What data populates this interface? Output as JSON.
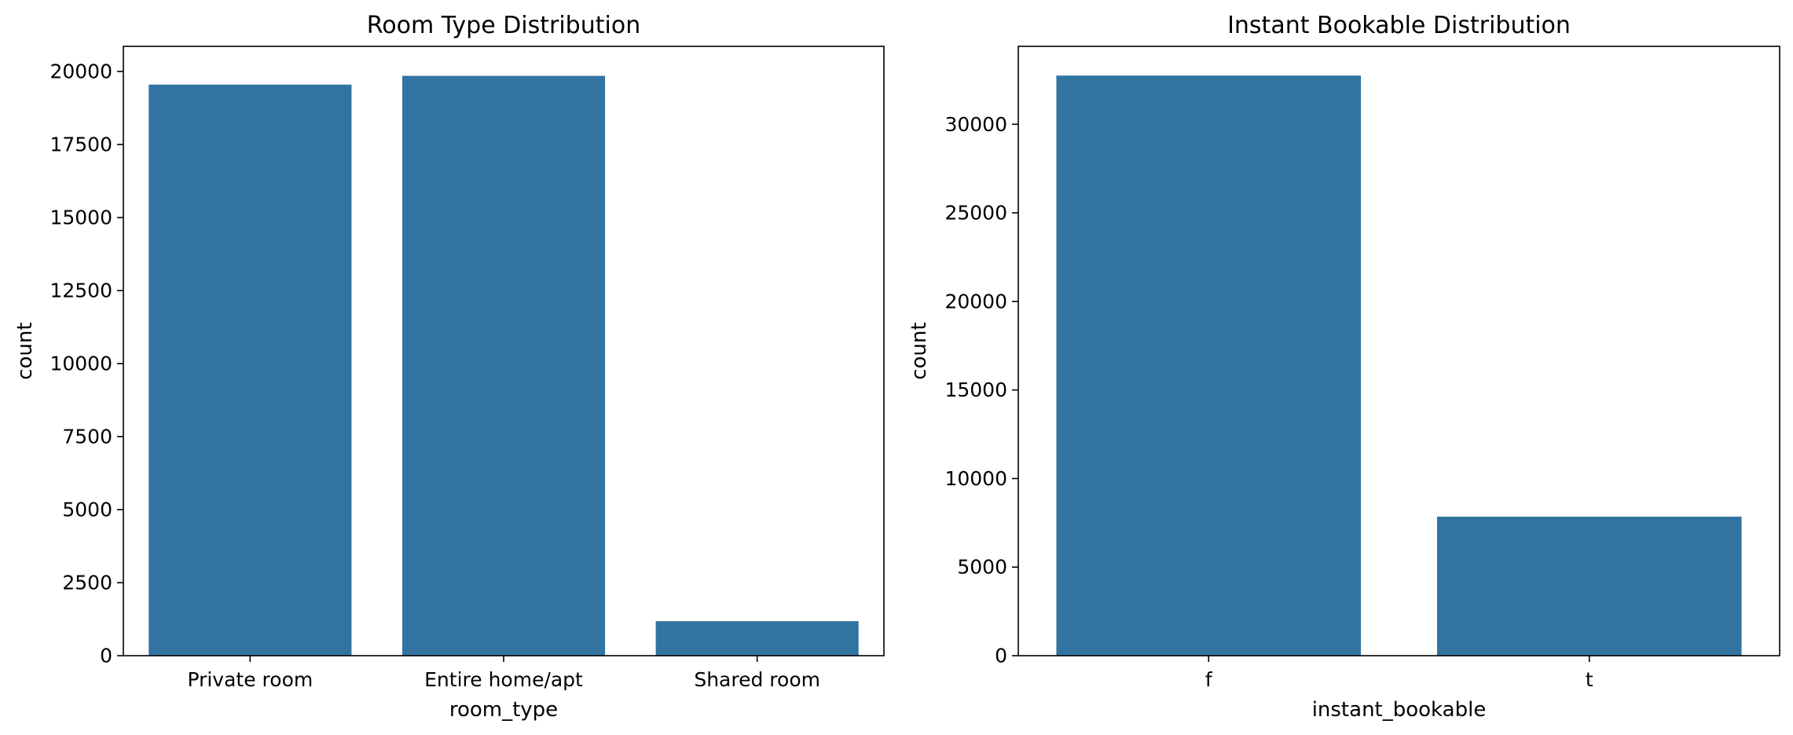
{
  "chart_data": [
    {
      "type": "bar",
      "title": "Room Type Distribution",
      "xlabel": "room_type",
      "ylabel": "count",
      "categories": [
        "Private room",
        "Entire home/apt",
        "Shared room"
      ],
      "values": [
        19550,
        19850,
        1180
      ],
      "ylim": [
        0,
        20860
      ],
      "yticks": [
        0,
        2500,
        5000,
        7500,
        10000,
        12500,
        15000,
        17500,
        20000
      ],
      "color": "#3274a1",
      "grid": false,
      "legend": false
    },
    {
      "type": "bar",
      "title": "Instant Bookable Distribution",
      "xlabel": "instant_bookable",
      "ylabel": "count",
      "categories": [
        "f",
        "t"
      ],
      "values": [
        32750,
        7850
      ],
      "ylim": [
        0,
        34400
      ],
      "yticks": [
        0,
        5000,
        10000,
        15000,
        20000,
        25000,
        30000
      ],
      "color": "#3274a1",
      "grid": false,
      "legend": false
    }
  ]
}
